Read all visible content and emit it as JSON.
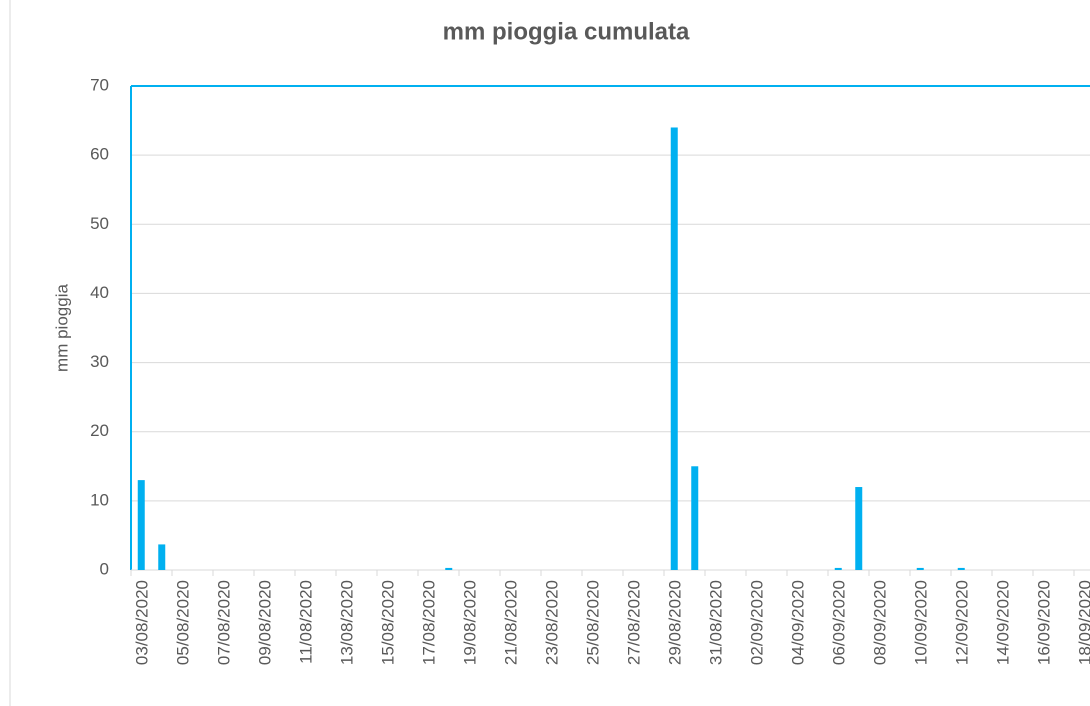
{
  "chart_data": {
    "type": "bar",
    "title": "mm pioggia cumulata",
    "y_label": "mm pioggia",
    "categories": [
      "03/08/2020",
      null,
      "05/08/2020",
      null,
      "07/08/2020",
      null,
      "09/08/2020",
      null,
      "11/08/2020",
      null,
      "13/08/2020",
      null,
      "15/08/2020",
      null,
      "17/08/2020",
      null,
      "19/08/2020",
      null,
      "21/08/2020",
      null,
      "23/08/2020",
      null,
      "25/08/2020",
      null,
      "27/08/2020",
      null,
      "29/08/2020",
      null,
      "31/08/2020",
      null,
      "02/09/2020",
      null,
      "04/09/2020",
      null,
      "06/09/2020",
      null,
      "08/09/2020",
      null,
      "10/09/2020",
      null,
      "12/09/2020",
      null,
      "14/09/2020",
      null,
      "16/09/2020",
      null,
      "18/09/2020",
      null
    ],
    "values": [
      13,
      3.7,
      0,
      0,
      0,
      0,
      0,
      0,
      0,
      0,
      0,
      0,
      0,
      0,
      0,
      0.3,
      0,
      0,
      0,
      0,
      0,
      0,
      0,
      0,
      0,
      0,
      64,
      15,
      0,
      0,
      0,
      0,
      0,
      0,
      0.3,
      12,
      0,
      0,
      0.3,
      0,
      0.3,
      0,
      0,
      0,
      0,
      0,
      0,
      0
    ],
    "color": "#00b0f0",
    "ylim": [
      0,
      70
    ],
    "yticks": [
      0,
      10,
      20,
      30,
      40,
      50,
      60,
      70
    ],
    "grid": true
  }
}
